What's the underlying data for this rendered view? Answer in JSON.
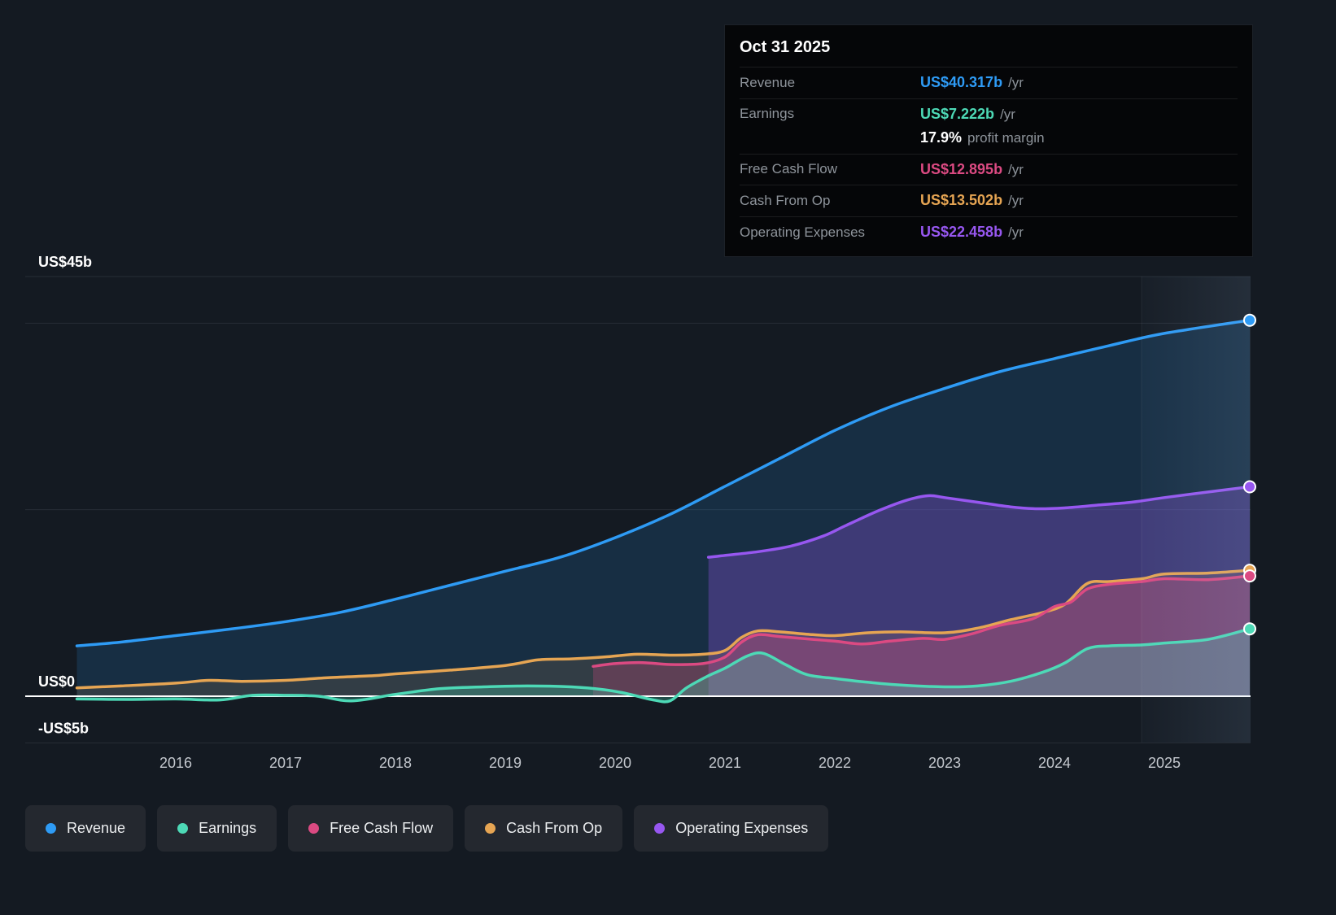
{
  "page": {
    "background_color": "#141a22",
    "zero_line_color": "#ffffff",
    "gridline_color": "#262d36"
  },
  "tooltip": {
    "title": "Oct 31 2025",
    "rows": [
      {
        "key": "revenue",
        "label": "Revenue",
        "value": "US$40.317b",
        "suffix": "/yr",
        "color": "#2e9bf5",
        "no_separator": false
      },
      {
        "key": "earnings",
        "label": "Earnings",
        "value": "US$7.222b",
        "suffix": "/yr",
        "color": "#4dd9b6",
        "no_separator": false
      },
      {
        "key": "margin",
        "label": "",
        "value": "17.9%",
        "suffix": "profit margin",
        "color": "#ffffff",
        "no_separator": true
      },
      {
        "key": "fcf",
        "label": "Free Cash Flow",
        "value": "US$12.895b",
        "suffix": "/yr",
        "color": "#db4a82",
        "no_separator": false
      },
      {
        "key": "cashop",
        "label": "Cash From Op",
        "value": "US$13.502b",
        "suffix": "/yr",
        "color": "#e6a553",
        "no_separator": false
      },
      {
        "key": "opex",
        "label": "Operating Expenses",
        "value": "US$22.458b",
        "suffix": "/yr",
        "color": "#9757f0",
        "no_separator": false
      }
    ]
  },
  "axis": {
    "y_ticks": [
      {
        "value": 45,
        "label": "US$45b"
      },
      {
        "value": 0,
        "label": "US$0"
      },
      {
        "value": -5,
        "label": "-US$5b"
      }
    ],
    "x_ticks": [
      {
        "value": 2016,
        "label": "2016"
      },
      {
        "value": 2017,
        "label": "2017"
      },
      {
        "value": 2018,
        "label": "2018"
      },
      {
        "value": 2019,
        "label": "2019"
      },
      {
        "value": 2020,
        "label": "2020"
      },
      {
        "value": 2021,
        "label": "2021"
      },
      {
        "value": 2022,
        "label": "2022"
      },
      {
        "value": 2023,
        "label": "2023"
      },
      {
        "value": 2024,
        "label": "2024"
      },
      {
        "value": 2025,
        "label": "2025"
      }
    ]
  },
  "chart_data": {
    "type": "area",
    "title": "Company financial history (US$ billions per year)",
    "x_unit": "year",
    "x_range": [
      2015.1,
      2025.78
    ],
    "y_range": [
      -5,
      45
    ],
    "y_gridlines": [
      45,
      40,
      20,
      0,
      -5
    ],
    "legend_position": "bottom",
    "paint_order": [
      "revenue",
      "opex",
      "cashop",
      "fcf",
      "earnings"
    ],
    "series": [
      {
        "key": "revenue",
        "name": "Revenue",
        "color": "#2e9bf5",
        "points": [
          [
            2015.1,
            5.4
          ],
          [
            2015.5,
            5.8
          ],
          [
            2016,
            6.5
          ],
          [
            2016.5,
            7.2
          ],
          [
            2017,
            8.0
          ],
          [
            2017.5,
            9.0
          ],
          [
            2018,
            10.4
          ],
          [
            2018.5,
            11.9
          ],
          [
            2019,
            13.4
          ],
          [
            2019.5,
            14.9
          ],
          [
            2020,
            17.0
          ],
          [
            2020.5,
            19.5
          ],
          [
            2021,
            22.5
          ],
          [
            2021.5,
            25.5
          ],
          [
            2022,
            28.5
          ],
          [
            2022.5,
            31.0
          ],
          [
            2023,
            33.0
          ],
          [
            2023.5,
            34.8
          ],
          [
            2024,
            36.2
          ],
          [
            2024.5,
            37.6
          ],
          [
            2025,
            38.9
          ],
          [
            2025.78,
            40.317
          ]
        ]
      },
      {
        "key": "earnings",
        "name": "Earnings",
        "color": "#4dd9b6",
        "points": [
          [
            2015.1,
            -0.3
          ],
          [
            2015.6,
            -0.35
          ],
          [
            2016,
            -0.3
          ],
          [
            2016.4,
            -0.4
          ],
          [
            2016.7,
            0.1
          ],
          [
            2017,
            0.1
          ],
          [
            2017.3,
            0.0
          ],
          [
            2017.6,
            -0.5
          ],
          [
            2018,
            0.2
          ],
          [
            2018.4,
            0.8
          ],
          [
            2018.8,
            1.0
          ],
          [
            2019.2,
            1.1
          ],
          [
            2019.6,
            1.0
          ],
          [
            2019.9,
            0.7
          ],
          [
            2020.1,
            0.3
          ],
          [
            2020.35,
            -0.4
          ],
          [
            2020.5,
            -0.5
          ],
          [
            2020.65,
            0.9
          ],
          [
            2020.85,
            2.2
          ],
          [
            2021,
            3.0
          ],
          [
            2021.2,
            4.3
          ],
          [
            2021.35,
            4.6
          ],
          [
            2021.55,
            3.4
          ],
          [
            2021.75,
            2.3
          ],
          [
            2022,
            1.9
          ],
          [
            2022.3,
            1.5
          ],
          [
            2022.6,
            1.2
          ],
          [
            2023,
            1.0
          ],
          [
            2023.3,
            1.1
          ],
          [
            2023.6,
            1.6
          ],
          [
            2023.9,
            2.6
          ],
          [
            2024.1,
            3.6
          ],
          [
            2024.3,
            5.1
          ],
          [
            2024.5,
            5.4
          ],
          [
            2024.8,
            5.5
          ],
          [
            2025,
            5.7
          ],
          [
            2025.4,
            6.1
          ],
          [
            2025.78,
            7.222
          ]
        ]
      },
      {
        "key": "fcf",
        "name": "Free Cash Flow",
        "color": "#db4a82",
        "points": [
          [
            2019.8,
            3.2
          ],
          [
            2020,
            3.5
          ],
          [
            2020.25,
            3.6
          ],
          [
            2020.5,
            3.4
          ],
          [
            2020.8,
            3.5
          ],
          [
            2021,
            4.2
          ],
          [
            2021.15,
            5.8
          ],
          [
            2021.3,
            6.6
          ],
          [
            2021.5,
            6.4
          ],
          [
            2021.8,
            6.1
          ],
          [
            2022,
            5.9
          ],
          [
            2022.25,
            5.6
          ],
          [
            2022.5,
            5.9
          ],
          [
            2022.8,
            6.2
          ],
          [
            2023,
            6.1
          ],
          [
            2023.25,
            6.7
          ],
          [
            2023.5,
            7.6
          ],
          [
            2023.8,
            8.3
          ],
          [
            2024,
            9.6
          ],
          [
            2024.15,
            10.1
          ],
          [
            2024.3,
            11.5
          ],
          [
            2024.5,
            12.0
          ],
          [
            2024.8,
            12.3
          ],
          [
            2025,
            12.6
          ],
          [
            2025.4,
            12.5
          ],
          [
            2025.78,
            12.895
          ]
        ]
      },
      {
        "key": "cashop",
        "name": "Cash From Op",
        "color": "#e6a553",
        "points": [
          [
            2015.1,
            0.9
          ],
          [
            2015.5,
            1.1
          ],
          [
            2016,
            1.4
          ],
          [
            2016.3,
            1.7
          ],
          [
            2016.6,
            1.6
          ],
          [
            2017,
            1.7
          ],
          [
            2017.4,
            2.0
          ],
          [
            2017.8,
            2.2
          ],
          [
            2018,
            2.4
          ],
          [
            2018.5,
            2.8
          ],
          [
            2019,
            3.3
          ],
          [
            2019.3,
            3.9
          ],
          [
            2019.6,
            4.0
          ],
          [
            2019.9,
            4.2
          ],
          [
            2020.2,
            4.5
          ],
          [
            2020.5,
            4.4
          ],
          [
            2020.8,
            4.5
          ],
          [
            2021,
            4.9
          ],
          [
            2021.15,
            6.3
          ],
          [
            2021.3,
            7.0
          ],
          [
            2021.5,
            6.9
          ],
          [
            2021.8,
            6.6
          ],
          [
            2022,
            6.5
          ],
          [
            2022.3,
            6.8
          ],
          [
            2022.6,
            6.9
          ],
          [
            2023,
            6.8
          ],
          [
            2023.3,
            7.3
          ],
          [
            2023.6,
            8.2
          ],
          [
            2023.9,
            9.0
          ],
          [
            2024.1,
            9.9
          ],
          [
            2024.3,
            12.1
          ],
          [
            2024.5,
            12.3
          ],
          [
            2024.8,
            12.6
          ],
          [
            2025,
            13.1
          ],
          [
            2025.4,
            13.2
          ],
          [
            2025.78,
            13.502
          ]
        ]
      },
      {
        "key": "opex",
        "name": "Operating Expenses",
        "color": "#9757f0",
        "points": [
          [
            2020.85,
            14.9
          ],
          [
            2021,
            15.1
          ],
          [
            2021.3,
            15.5
          ],
          [
            2021.6,
            16.1
          ],
          [
            2021.9,
            17.2
          ],
          [
            2022.1,
            18.3
          ],
          [
            2022.4,
            19.9
          ],
          [
            2022.65,
            21.0
          ],
          [
            2022.85,
            21.5
          ],
          [
            2023,
            21.3
          ],
          [
            2023.3,
            20.8
          ],
          [
            2023.6,
            20.3
          ],
          [
            2023.85,
            20.1
          ],
          [
            2024.1,
            20.2
          ],
          [
            2024.4,
            20.5
          ],
          [
            2024.7,
            20.8
          ],
          [
            2025,
            21.3
          ],
          [
            2025.4,
            21.9
          ],
          [
            2025.78,
            22.458
          ]
        ]
      }
    ]
  }
}
